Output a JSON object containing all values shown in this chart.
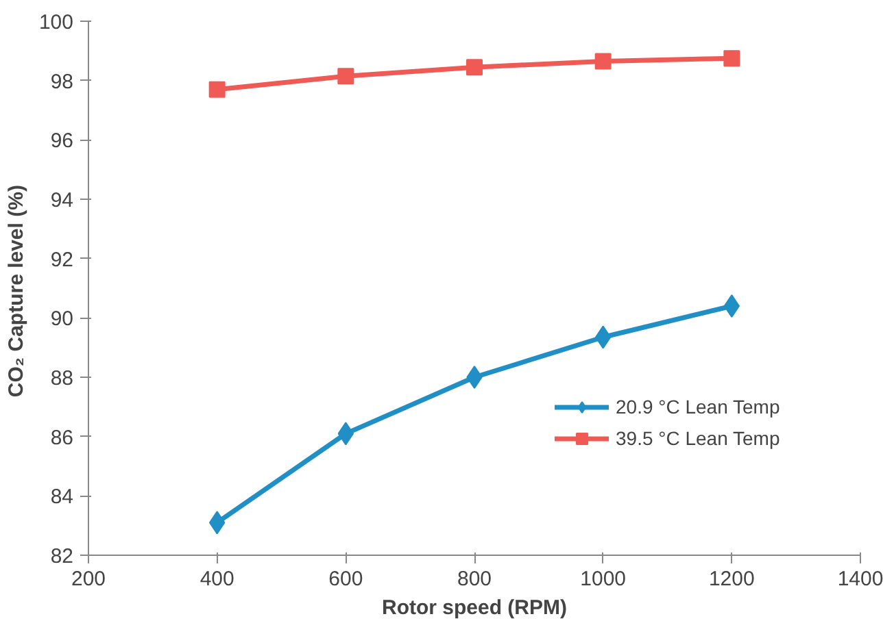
{
  "chart_data": {
    "type": "line",
    "xlabel": "Rotor speed (RPM)",
    "ylabel": "CO₂  Capture level (%)",
    "x": [
      400,
      600,
      800,
      1000,
      1200
    ],
    "series": [
      {
        "name": "20.9 °C Lean Temp",
        "color": "#1f8fc6",
        "marker": "diamond",
        "values": [
          83.1,
          86.1,
          88.0,
          89.35,
          90.4
        ]
      },
      {
        "name": "39.5 °C Lean Temp",
        "color": "#ef5a55",
        "marker": "square",
        "values": [
          97.7,
          98.15,
          98.45,
          98.65,
          98.75
        ]
      }
    ],
    "xlim": [
      200,
      1400
    ],
    "xticks": [
      200,
      400,
      600,
      800,
      1000,
      1200,
      1400
    ],
    "ylim": [
      82,
      100
    ],
    "yticks": [
      82,
      84,
      86,
      88,
      90,
      92,
      94,
      96,
      98,
      100
    ],
    "grid": false,
    "legend": "right"
  }
}
